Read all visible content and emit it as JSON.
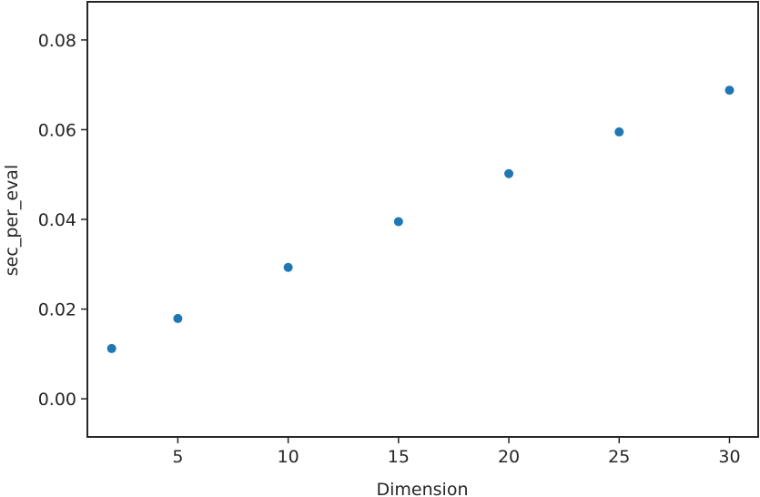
{
  "chart_data": {
    "type": "scatter",
    "title": "",
    "xlabel": "Dimension",
    "ylabel": "sec_per_eval",
    "x": [
      2,
      5,
      10,
      15,
      20,
      25,
      30
    ],
    "y": [
      0.0112,
      0.0179,
      0.0293,
      0.0395,
      0.0502,
      0.0595,
      0.0688
    ],
    "xlim": [
      0.9,
      31.3
    ],
    "ylim": [
      -0.0085,
      0.0885
    ],
    "xticks": [
      5,
      10,
      15,
      20,
      25,
      30
    ],
    "xtick_labels": [
      "5",
      "10",
      "15",
      "20",
      "25",
      "30"
    ],
    "yticks": [
      0.0,
      0.02,
      0.04,
      0.06,
      0.08
    ],
    "ytick_labels": [
      "0.00",
      "0.02",
      "0.04",
      "0.06",
      "0.08"
    ],
    "grid": false,
    "colors": {
      "marker": "#1f77b4",
      "axis": "#262626"
    }
  }
}
